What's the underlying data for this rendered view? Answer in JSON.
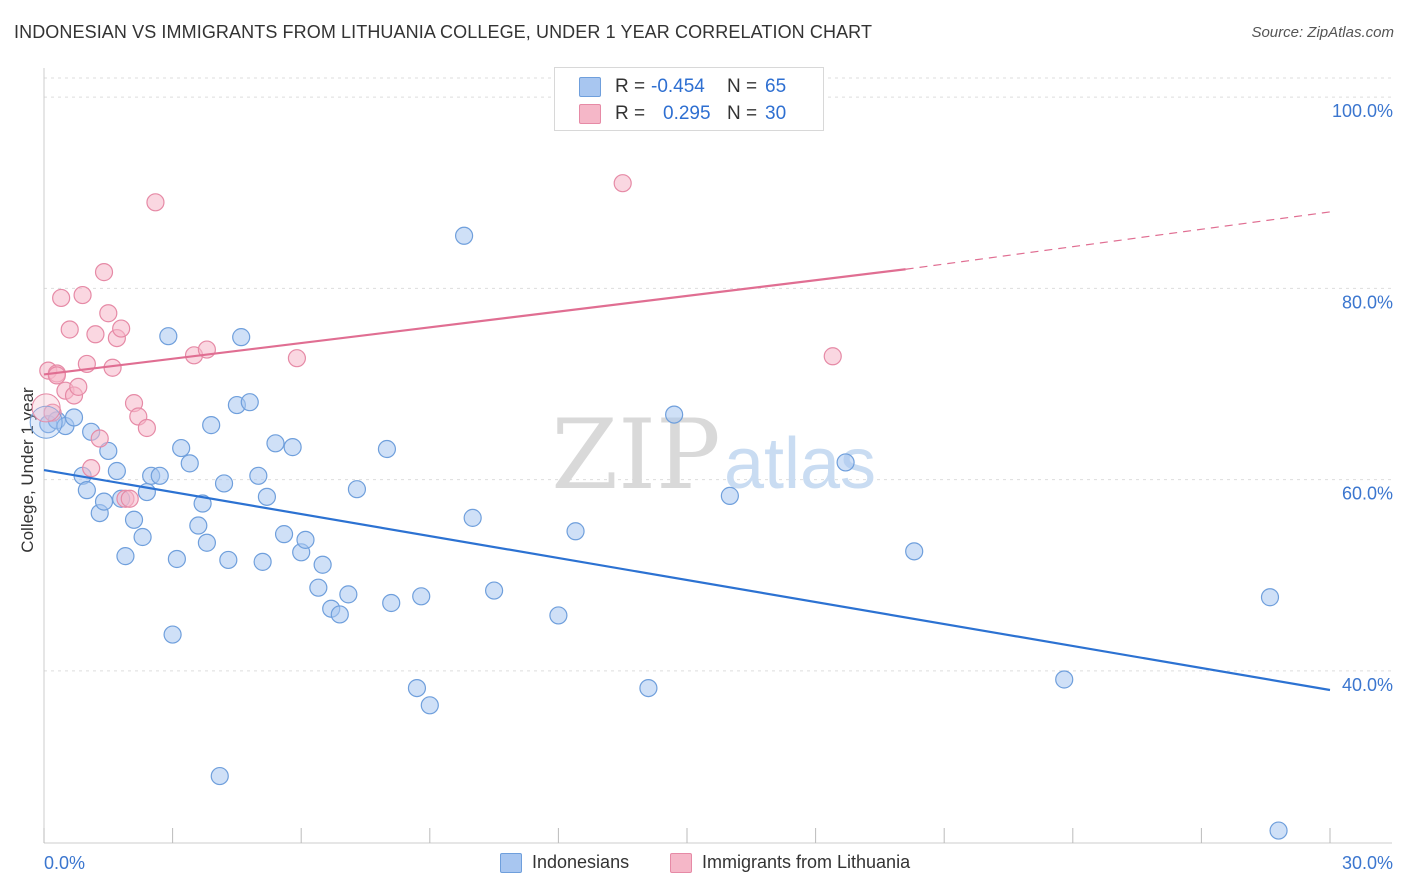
{
  "header": {
    "title": "INDONESIAN VS IMMIGRANTS FROM LITHUANIA COLLEGE, UNDER 1 YEAR CORRELATION CHART",
    "source": "Source: ZipAtlas.com"
  },
  "watermark": {
    "zip": "ZIP",
    "atlas": "atlas"
  },
  "legend_top": {
    "rows": [
      {
        "r_label": "R =",
        "r_value": "-0.454",
        "n_label": "N =",
        "n_value": "65",
        "color": "#a8c6f0"
      },
      {
        "r_label": "R =",
        "r_value": "0.295",
        "n_label": "N =",
        "n_value": "30",
        "color": "#f5b7c8"
      }
    ]
  },
  "legend_bottom": {
    "items": [
      {
        "label": "Indonesians",
        "color": "#a8c6f0"
      },
      {
        "label": "Immigrants from Lithuania",
        "color": "#f5b7c8"
      }
    ]
  },
  "chart_data": {
    "type": "scatter",
    "title": "INDONESIAN VS IMMIGRANTS FROM LITHUANIA COLLEGE, UNDER 1 YEAR CORRELATION CHART",
    "xlabel": "",
    "ylabel": "College, Under 1 year",
    "xlim": [
      0,
      30
    ],
    "ylim": [
      22,
      102
    ],
    "x_tick_labels": [
      "0.0%",
      "30.0%"
    ],
    "y_ticks": [
      40,
      60,
      80,
      100
    ],
    "y_tick_labels": [
      "40.0%",
      "60.0%",
      "80.0%",
      "100.0%"
    ],
    "series": [
      {
        "name": "Indonesians",
        "color": "#6f9fdc",
        "fill": "#a8c6f0",
        "trend": {
          "x": [
            0,
            30
          ],
          "y": [
            61.0,
            38.0
          ],
          "color": "#2c72d2"
        },
        "points": [
          [
            0.1,
            65.8
          ],
          [
            0.3,
            66.2
          ],
          [
            0.5,
            65.6
          ],
          [
            0.7,
            66.5
          ],
          [
            0.9,
            60.4
          ],
          [
            1.0,
            58.9
          ],
          [
            1.1,
            65.0
          ],
          [
            1.3,
            56.5
          ],
          [
            1.4,
            57.7
          ],
          [
            1.5,
            63.0
          ],
          [
            1.7,
            60.9
          ],
          [
            1.8,
            58.0
          ],
          [
            1.9,
            52.0
          ],
          [
            2.1,
            55.8
          ],
          [
            2.3,
            54.0
          ],
          [
            2.4,
            58.7
          ],
          [
            2.5,
            60.4
          ],
          [
            2.7,
            60.4
          ],
          [
            2.9,
            75.0
          ],
          [
            3.0,
            43.8
          ],
          [
            3.1,
            51.7
          ],
          [
            3.2,
            63.3
          ],
          [
            3.4,
            61.7
          ],
          [
            3.6,
            55.2
          ],
          [
            3.7,
            57.5
          ],
          [
            3.8,
            53.4
          ],
          [
            3.9,
            65.7
          ],
          [
            4.2,
            59.6
          ],
          [
            4.3,
            51.6
          ],
          [
            4.5,
            67.8
          ],
          [
            4.6,
            74.9
          ],
          [
            4.8,
            68.1
          ],
          [
            5.0,
            60.4
          ],
          [
            5.1,
            51.4
          ],
          [
            5.2,
            58.2
          ],
          [
            5.4,
            63.8
          ],
          [
            5.6,
            54.3
          ],
          [
            5.8,
            63.4
          ],
          [
            6.0,
            52.4
          ],
          [
            6.1,
            53.7
          ],
          [
            6.4,
            48.7
          ],
          [
            6.5,
            51.1
          ],
          [
            6.7,
            46.5
          ],
          [
            6.9,
            45.9
          ],
          [
            7.1,
            48.0
          ],
          [
            7.3,
            59.0
          ],
          [
            8.0,
            63.2
          ],
          [
            8.1,
            47.1
          ],
          [
            8.7,
            38.2
          ],
          [
            8.8,
            47.8
          ],
          [
            9.0,
            36.4
          ],
          [
            9.8,
            85.5
          ],
          [
            10.5,
            48.4
          ],
          [
            12.0,
            45.8
          ],
          [
            12.4,
            54.6
          ],
          [
            14.1,
            38.2
          ],
          [
            14.7,
            66.8
          ],
          [
            16.0,
            58.3
          ],
          [
            18.7,
            61.8
          ],
          [
            20.3,
            52.5
          ],
          [
            23.8,
            39.1
          ],
          [
            28.6,
            47.7
          ],
          [
            28.8,
            23.3
          ],
          [
            4.1,
            29.0
          ],
          [
            10.0,
            56.0
          ]
        ]
      },
      {
        "name": "Immigrants from Lithuania",
        "color": "#e68aa6",
        "fill": "#f5b7c8",
        "trend": {
          "x": [
            0,
            20.1
          ],
          "y": [
            71.0,
            82.0
          ],
          "dash_x": [
            20.1,
            30
          ],
          "dash_y": [
            82.0,
            88.0
          ],
          "color": "#e06e92"
        },
        "points": [
          [
            0.1,
            71.4
          ],
          [
            0.2,
            67.0
          ],
          [
            0.3,
            71.1
          ],
          [
            0.4,
            79.0
          ],
          [
            0.5,
            69.3
          ],
          [
            0.6,
            75.7
          ],
          [
            0.7,
            68.8
          ],
          [
            0.8,
            69.7
          ],
          [
            0.9,
            79.3
          ],
          [
            1.0,
            72.1
          ],
          [
            1.1,
            61.2
          ],
          [
            1.2,
            75.2
          ],
          [
            1.3,
            64.3
          ],
          [
            1.4,
            81.7
          ],
          [
            1.5,
            77.4
          ],
          [
            1.6,
            71.7
          ],
          [
            1.7,
            74.8
          ],
          [
            1.8,
            75.8
          ],
          [
            1.9,
            58.0
          ],
          [
            2.0,
            58.0
          ],
          [
            2.1,
            68.0
          ],
          [
            2.2,
            66.6
          ],
          [
            2.4,
            65.4
          ],
          [
            2.6,
            89.0
          ],
          [
            3.5,
            73.0
          ],
          [
            3.8,
            73.6
          ],
          [
            5.9,
            72.7
          ],
          [
            13.5,
            91.0
          ],
          [
            18.4,
            72.9
          ],
          [
            0.3,
            70.9
          ]
        ]
      }
    ]
  }
}
